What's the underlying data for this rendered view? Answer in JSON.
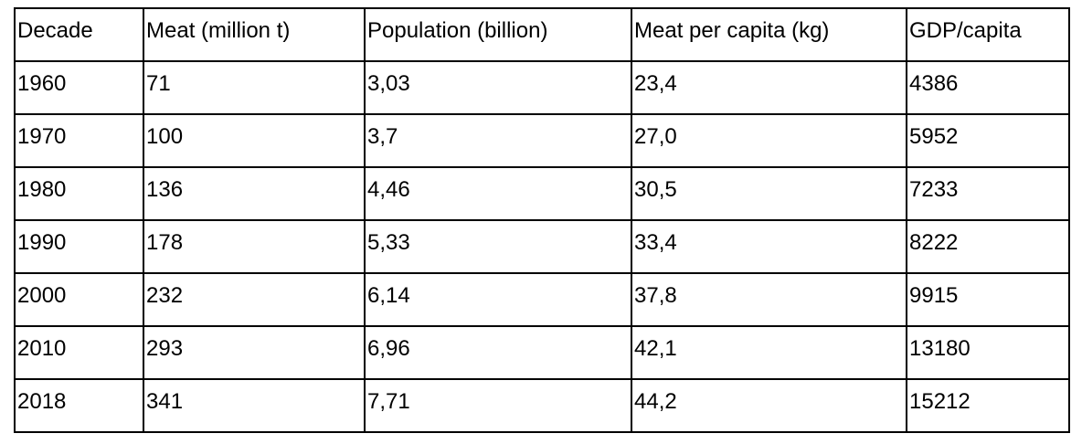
{
  "table": {
    "headers": [
      "Decade",
      "Meat (million t)",
      "Population (billion)",
      "Meat per capita (kg)",
      "GDP/capita"
    ],
    "rows": [
      [
        "1960",
        "71",
        "3,03",
        "23,4",
        "4386"
      ],
      [
        "1970",
        "100",
        "3,7",
        "27,0",
        "5952"
      ],
      [
        "1980",
        "136",
        "4,46",
        "30,5",
        "7233"
      ],
      [
        "1990",
        "178",
        "5,33",
        "33,4",
        "8222"
      ],
      [
        "2000",
        "232",
        "6,14",
        "37,8",
        "9915"
      ],
      [
        "2010",
        "293",
        "6,96",
        "42,1",
        "13180"
      ],
      [
        "2018",
        "341",
        "7,71",
        "44,2",
        "15212"
      ]
    ]
  }
}
